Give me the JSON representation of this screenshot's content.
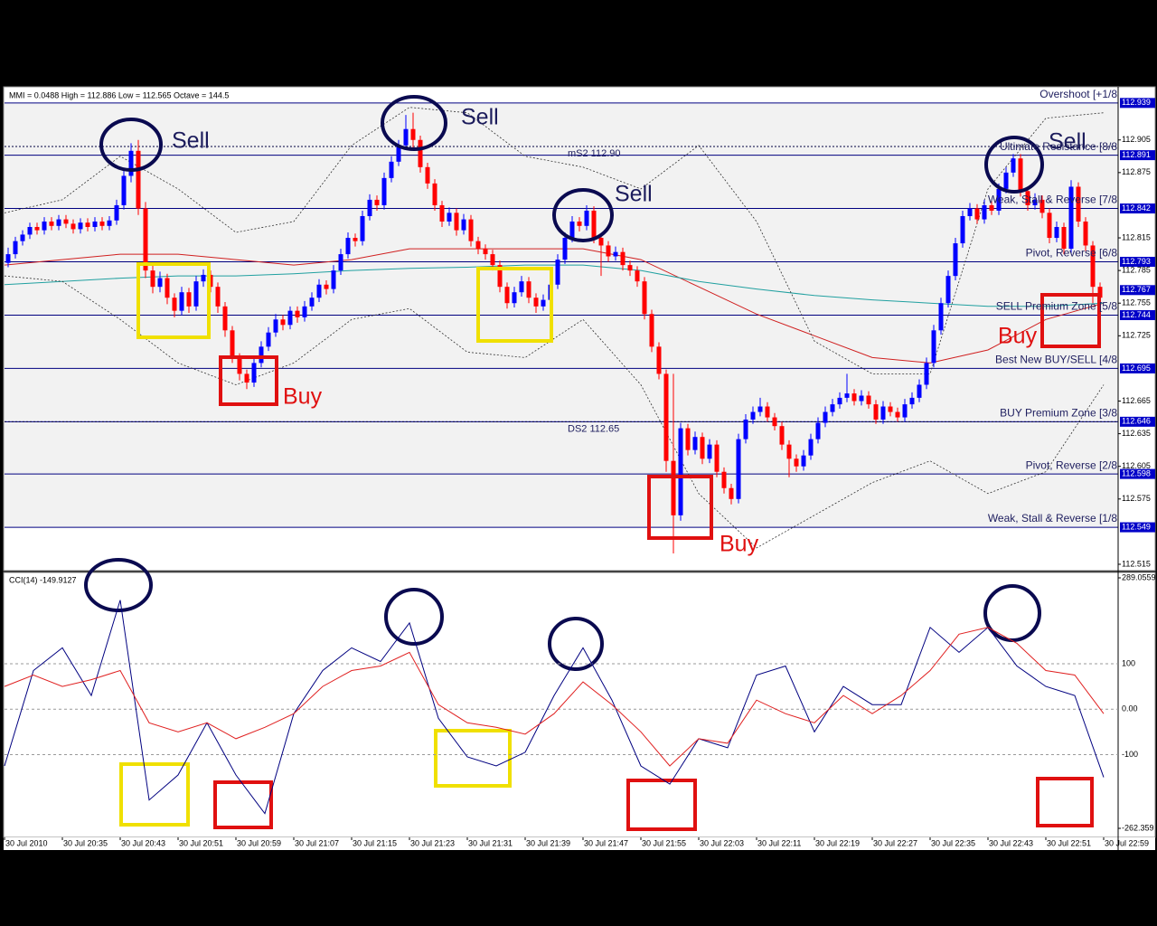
{
  "chart_data": {
    "type": "candlestick",
    "header": "MMI = 0.0488   High = 112.886   Low = 112.565   Octave = 144.5",
    "up_color": "#0000ff",
    "down_color": "#ff0000",
    "ylim": [
      112.51,
      112.953
    ],
    "yticks": [
      112.905,
      112.875,
      112.815,
      112.785,
      112.755,
      112.725,
      112.665,
      112.635,
      112.605,
      112.575,
      112.515
    ],
    "x_labels": [
      "30 Jul 2010",
      "30 Jul 20:35",
      "30 Jul 20:43",
      "30 Jul 20:51",
      "30 Jul 20:59",
      "30 Jul 21:07",
      "30 Jul 21:15",
      "30 Jul 21:23",
      "30 Jul 21:31",
      "30 Jul 21:39",
      "30 Jul 21:47",
      "30 Jul 21:55",
      "30 Jul 22:03",
      "30 Jul 22:11",
      "30 Jul 22:19",
      "30 Jul 22:27",
      "30 Jul 22:35",
      "30 Jul 22:43",
      "30 Jul 22:51",
      "30 Jul 22:59"
    ],
    "levels": [
      {
        "price": 112.939,
        "name": "Overshoot [+1/8"
      },
      {
        "price": 112.891,
        "name": "Ultimate Resistance [8/8"
      },
      {
        "price": 112.842,
        "name": "Weak, Stall & Reverse [7/8"
      },
      {
        "price": 112.793,
        "name": "Pivot, Reverse [6/8"
      },
      {
        "price": 112.744,
        "name": "SELL Premium Zone [5/8"
      },
      {
        "price": 112.695,
        "name": "Best New BUY/SELL [4/8"
      },
      {
        "price": 112.646,
        "name": "BUY Premium Zone [3/8"
      },
      {
        "price": 112.598,
        "name": "Pivot, Reverse [2/8"
      },
      {
        "price": 112.549,
        "name": "Weak, Stall & Reverse [1/8"
      }
    ],
    "pivots": [
      {
        "price": 112.899,
        "label": "mS2   112.90"
      },
      {
        "price": 112.646,
        "label": "DS2   112.65"
      }
    ],
    "current_price": 112.767,
    "current_color": "#0000c8",
    "candles": [
      [
        112.792,
        112.806,
        112.788,
        112.8
      ],
      [
        112.8,
        112.816,
        112.796,
        112.812
      ],
      [
        112.812,
        112.822,
        112.808,
        112.818
      ],
      [
        112.818,
        112.829,
        112.814,
        112.825
      ],
      [
        112.825,
        112.829,
        112.818,
        112.822
      ],
      [
        112.822,
        112.834,
        112.818,
        112.83
      ],
      [
        112.83,
        112.834,
        112.822,
        112.826
      ],
      [
        112.826,
        112.836,
        112.822,
        112.832
      ],
      [
        112.832,
        112.836,
        112.824,
        112.828
      ],
      [
        112.828,
        112.832,
        112.819,
        112.823
      ],
      [
        112.823,
        112.833,
        112.819,
        112.829
      ],
      [
        112.829,
        112.833,
        112.821,
        112.825
      ],
      [
        112.825,
        112.834,
        112.821,
        112.83
      ],
      [
        112.83,
        112.834,
        112.822,
        112.826
      ],
      [
        112.826,
        112.835,
        112.822,
        112.831
      ],
      [
        112.831,
        112.85,
        112.827,
        112.845
      ],
      [
        112.845,
        112.878,
        112.841,
        112.872
      ],
      [
        112.872,
        112.902,
        112.866,
        112.895
      ],
      [
        112.895,
        112.905,
        112.836,
        112.842
      ],
      [
        112.842,
        112.848,
        112.778,
        112.785
      ],
      [
        112.785,
        112.792,
        112.764,
        112.77
      ],
      [
        112.77,
        112.784,
        112.765,
        112.778
      ],
      [
        112.778,
        112.782,
        112.754,
        112.76
      ],
      [
        112.76,
        112.764,
        112.742,
        112.748
      ],
      [
        112.748,
        112.77,
        112.744,
        112.765
      ],
      [
        112.765,
        112.769,
        112.746,
        112.752
      ],
      [
        112.752,
        112.78,
        112.748,
        112.775
      ],
      [
        112.775,
        112.786,
        112.77,
        112.781
      ],
      [
        112.781,
        112.785,
        112.765,
        112.77
      ],
      [
        112.77,
        112.774,
        112.746,
        112.752
      ],
      [
        112.752,
        112.756,
        112.724,
        112.73
      ],
      [
        112.73,
        112.734,
        112.7,
        112.705
      ],
      [
        112.705,
        112.709,
        112.684,
        112.69
      ],
      [
        112.69,
        112.694,
        112.676,
        112.682
      ],
      [
        112.682,
        112.705,
        112.678,
        112.7
      ],
      [
        112.7,
        112.72,
        112.696,
        112.715
      ],
      [
        112.715,
        112.733,
        112.711,
        112.728
      ],
      [
        112.728,
        112.745,
        112.724,
        112.74
      ],
      [
        112.74,
        112.744,
        112.73,
        112.735
      ],
      [
        112.735,
        112.752,
        112.731,
        112.748
      ],
      [
        112.748,
        112.752,
        112.737,
        112.742
      ],
      [
        112.742,
        112.757,
        112.738,
        112.752
      ],
      [
        112.752,
        112.765,
        112.748,
        112.76
      ],
      [
        112.76,
        112.777,
        112.756,
        112.772
      ],
      [
        112.772,
        112.776,
        112.763,
        112.768
      ],
      [
        112.768,
        112.79,
        112.764,
        112.785
      ],
      [
        112.785,
        112.805,
        112.781,
        112.8
      ],
      [
        112.8,
        112.82,
        112.796,
        112.815
      ],
      [
        112.815,
        112.819,
        112.807,
        112.812
      ],
      [
        112.812,
        112.84,
        112.808,
        112.835
      ],
      [
        112.835,
        112.855,
        112.831,
        112.85
      ],
      [
        112.85,
        112.854,
        112.84,
        112.845
      ],
      [
        112.845,
        112.875,
        112.841,
        112.87
      ],
      [
        112.87,
        112.89,
        112.866,
        112.885
      ],
      [
        112.885,
        112.905,
        112.881,
        112.9
      ],
      [
        112.9,
        112.928,
        112.896,
        112.915
      ],
      [
        112.915,
        112.93,
        112.898,
        112.905
      ],
      [
        112.905,
        112.909,
        112.875,
        112.88
      ],
      [
        112.88,
        112.884,
        112.86,
        112.865
      ],
      [
        112.865,
        112.869,
        112.84,
        112.845
      ],
      [
        112.845,
        112.849,
        112.825,
        112.83
      ],
      [
        112.83,
        112.843,
        112.826,
        112.838
      ],
      [
        112.838,
        112.842,
        112.817,
        112.822
      ],
      [
        112.822,
        112.837,
        112.818,
        112.832
      ],
      [
        112.832,
        112.836,
        112.807,
        112.812
      ],
      [
        112.812,
        112.816,
        112.8,
        112.805
      ],
      [
        112.805,
        112.809,
        112.795,
        112.8
      ],
      [
        112.8,
        112.804,
        112.785,
        112.79
      ],
      [
        112.79,
        112.794,
        112.765,
        112.77
      ],
      [
        112.77,
        112.774,
        112.75,
        112.755
      ],
      [
        112.755,
        112.77,
        112.751,
        112.765
      ],
      [
        112.765,
        112.78,
        112.761,
        112.775
      ],
      [
        112.775,
        112.779,
        112.755,
        112.76
      ],
      [
        112.76,
        112.764,
        112.746,
        112.752
      ],
      [
        112.752,
        112.763,
        112.748,
        112.758
      ],
      [
        112.758,
        112.777,
        112.754,
        112.772
      ],
      [
        112.772,
        112.8,
        112.768,
        112.795
      ],
      [
        112.795,
        112.82,
        112.791,
        112.815
      ],
      [
        112.815,
        112.835,
        112.811,
        112.83
      ],
      [
        112.83,
        112.834,
        112.821,
        112.826
      ],
      [
        112.826,
        112.845,
        112.822,
        112.84
      ],
      [
        112.84,
        112.844,
        112.81,
        112.815
      ],
      [
        112.815,
        112.819,
        112.78,
        112.808
      ],
      [
        112.808,
        112.812,
        112.793,
        112.798
      ],
      [
        112.798,
        112.807,
        112.794,
        112.802
      ],
      [
        112.802,
        112.806,
        112.785,
        112.79
      ],
      [
        112.79,
        112.794,
        112.78,
        112.785
      ],
      [
        112.785,
        112.789,
        112.77,
        112.775
      ],
      [
        112.775,
        112.779,
        112.74,
        112.745
      ],
      [
        112.745,
        112.749,
        112.71,
        112.715
      ],
      [
        112.715,
        112.719,
        112.685,
        112.69
      ],
      [
        112.69,
        112.694,
        112.6,
        112.61
      ],
      [
        112.61,
        112.69,
        112.525,
        112.56
      ],
      [
        112.56,
        112.645,
        112.555,
        112.64
      ],
      [
        112.64,
        112.644,
        112.615,
        112.62
      ],
      [
        112.62,
        112.637,
        112.616,
        112.632
      ],
      [
        112.632,
        112.636,
        112.607,
        112.612
      ],
      [
        112.612,
        112.63,
        112.608,
        112.625
      ],
      [
        112.625,
        112.629,
        112.595,
        112.6
      ],
      [
        112.6,
        112.604,
        112.58,
        112.585
      ],
      [
        112.585,
        112.589,
        112.57,
        112.575
      ],
      [
        112.575,
        112.635,
        112.571,
        112.63
      ],
      [
        112.63,
        112.653,
        112.626,
        112.648
      ],
      [
        112.648,
        112.66,
        112.644,
        112.655
      ],
      [
        112.655,
        112.668,
        112.651,
        112.66
      ],
      [
        112.66,
        112.664,
        112.646,
        112.65
      ],
      [
        112.65,
        112.654,
        112.638,
        112.642
      ],
      [
        112.642,
        112.646,
        112.62,
        112.625
      ],
      [
        112.625,
        112.629,
        112.595,
        112.612
      ],
      [
        112.612,
        112.616,
        112.6,
        112.605
      ],
      [
        112.605,
        112.62,
        112.601,
        112.615
      ],
      [
        112.615,
        112.635,
        112.611,
        112.63
      ],
      [
        112.63,
        112.65,
        112.626,
        112.645
      ],
      [
        112.645,
        112.66,
        112.641,
        112.655
      ],
      [
        112.655,
        112.667,
        112.651,
        112.662
      ],
      [
        112.662,
        112.673,
        112.658,
        112.668
      ],
      [
        112.668,
        112.69,
        112.664,
        112.672
      ],
      [
        112.672,
        112.676,
        112.661,
        112.665
      ],
      [
        112.665,
        112.675,
        112.661,
        112.67
      ],
      [
        112.67,
        112.674,
        112.658,
        112.662
      ],
      [
        112.662,
        112.666,
        112.644,
        112.648
      ],
      [
        112.648,
        112.665,
        112.644,
        112.66
      ],
      [
        112.66,
        112.664,
        112.651,
        112.655
      ],
      [
        112.655,
        112.659,
        112.646,
        112.65
      ],
      [
        112.65,
        112.667,
        112.646,
        112.662
      ],
      [
        112.662,
        112.673,
        112.658,
        112.668
      ],
      [
        112.668,
        112.685,
        112.664,
        112.68
      ],
      [
        112.68,
        112.705,
        112.676,
        112.7
      ],
      [
        112.7,
        112.735,
        112.696,
        112.73
      ],
      [
        112.73,
        112.76,
        112.726,
        112.755
      ],
      [
        112.755,
        112.785,
        112.751,
        112.78
      ],
      [
        112.78,
        112.815,
        112.776,
        112.81
      ],
      [
        112.81,
        112.84,
        112.806,
        112.835
      ],
      [
        112.835,
        112.847,
        112.831,
        112.842
      ],
      [
        112.842,
        112.846,
        112.828,
        112.832
      ],
      [
        112.832,
        112.85,
        112.828,
        112.845
      ],
      [
        112.845,
        112.849,
        112.836,
        112.84
      ],
      [
        112.84,
        112.865,
        112.836,
        112.86
      ],
      [
        112.86,
        112.88,
        112.856,
        112.875
      ],
      [
        112.875,
        112.892,
        112.871,
        112.888
      ],
      [
        112.888,
        112.892,
        112.853,
        112.858
      ],
      [
        112.858,
        112.862,
        112.84,
        112.845
      ],
      [
        112.845,
        112.856,
        112.841,
        112.85
      ],
      [
        112.85,
        112.854,
        112.833,
        112.838
      ],
      [
        112.838,
        112.842,
        112.81,
        112.815
      ],
      [
        112.815,
        112.83,
        112.811,
        112.825
      ],
      [
        112.825,
        112.829,
        112.8,
        112.805
      ],
      [
        112.805,
        112.868,
        112.801,
        112.862
      ],
      [
        112.862,
        112.866,
        112.825,
        112.83
      ],
      [
        112.83,
        112.834,
        112.803,
        112.808
      ],
      [
        112.808,
        112.812,
        112.755,
        112.77
      ],
      [
        112.77,
        112.774,
        112.748,
        112.76
      ]
    ],
    "lines": [
      {
        "color": "#d02020",
        "dash": false,
        "values": [
          112.79,
          112.795,
          112.8,
          112.8,
          112.795,
          112.79,
          112.795,
          112.805,
          112.805,
          112.805,
          112.805,
          112.795,
          112.77,
          112.745,
          112.725,
          112.705,
          112.7,
          112.712,
          112.74,
          112.755
        ]
      },
      {
        "color": "#20a0a0",
        "dash": false,
        "values": [
          112.772,
          112.775,
          112.778,
          112.78,
          112.78,
          112.782,
          112.785,
          112.787,
          112.788,
          112.79,
          112.79,
          112.785,
          112.775,
          112.768,
          112.762,
          112.758,
          112.755,
          112.752,
          112.752,
          112.755
        ]
      },
      {
        "color": "#303030",
        "dash": true,
        "values": [
          112.838,
          112.85,
          112.89,
          112.86,
          112.82,
          112.83,
          112.9,
          112.935,
          112.93,
          112.89,
          112.88,
          112.86,
          112.9,
          112.83,
          112.72,
          112.69,
          112.69,
          112.86,
          112.925,
          112.93
        ]
      },
      {
        "color": "#303030",
        "dash": true,
        "values": [
          112.78,
          112.775,
          112.74,
          112.7,
          112.68,
          112.7,
          112.74,
          112.75,
          112.71,
          112.705,
          112.74,
          112.68,
          112.58,
          112.53,
          112.56,
          112.59,
          112.61,
          112.58,
          112.6,
          112.68
        ]
      }
    ],
    "annotations": [
      {
        "text": "Sell",
        "color": "#1c1c5c"
      },
      {
        "text": "Sell",
        "color": "#1c1c5c"
      },
      {
        "text": "Sell",
        "color": "#1c1c5c"
      },
      {
        "text": "Sell",
        "color": "#1c1c5c"
      },
      {
        "text": "Buy",
        "color": "#e01010"
      },
      {
        "text": "Buy",
        "color": "#e01010"
      },
      {
        "text": "Buy",
        "color": "#e01010"
      }
    ],
    "cci": {
      "label": "CCI(14) -149.9127",
      "ylim": [
        -262.359,
        289.0559
      ],
      "yticks": [
        289.0559,
        100,
        {
          "value": 0,
          "label": "0.00"
        },
        -100,
        -262.359
      ],
      "lines": [
        {
          "color": "#000080",
          "values": [
            -125,
            85,
            135,
            30,
            240,
            -200,
            -145,
            -30,
            -145,
            -230,
            -10,
            85,
            135,
            105,
            190,
            -20,
            -105,
            -125,
            -95,
            30,
            135,
            20,
            -125,
            -165,
            -65,
            -85,
            75,
            95,
            -50,
            50,
            10,
            10,
            180,
            125,
            180,
            95,
            50,
            30,
            -150
          ]
        },
        {
          "color": "#e02020",
          "values": [
            50,
            75,
            50,
            65,
            85,
            -30,
            -50,
            -30,
            -65,
            -40,
            -10,
            50,
            85,
            95,
            125,
            10,
            -30,
            -40,
            -55,
            -10,
            60,
            10,
            -50,
            -125,
            -65,
            -75,
            20,
            -10,
            -30,
            30,
            -10,
            30,
            85,
            165,
            180,
            145,
            85,
            75,
            -10
          ]
        }
      ]
    }
  }
}
